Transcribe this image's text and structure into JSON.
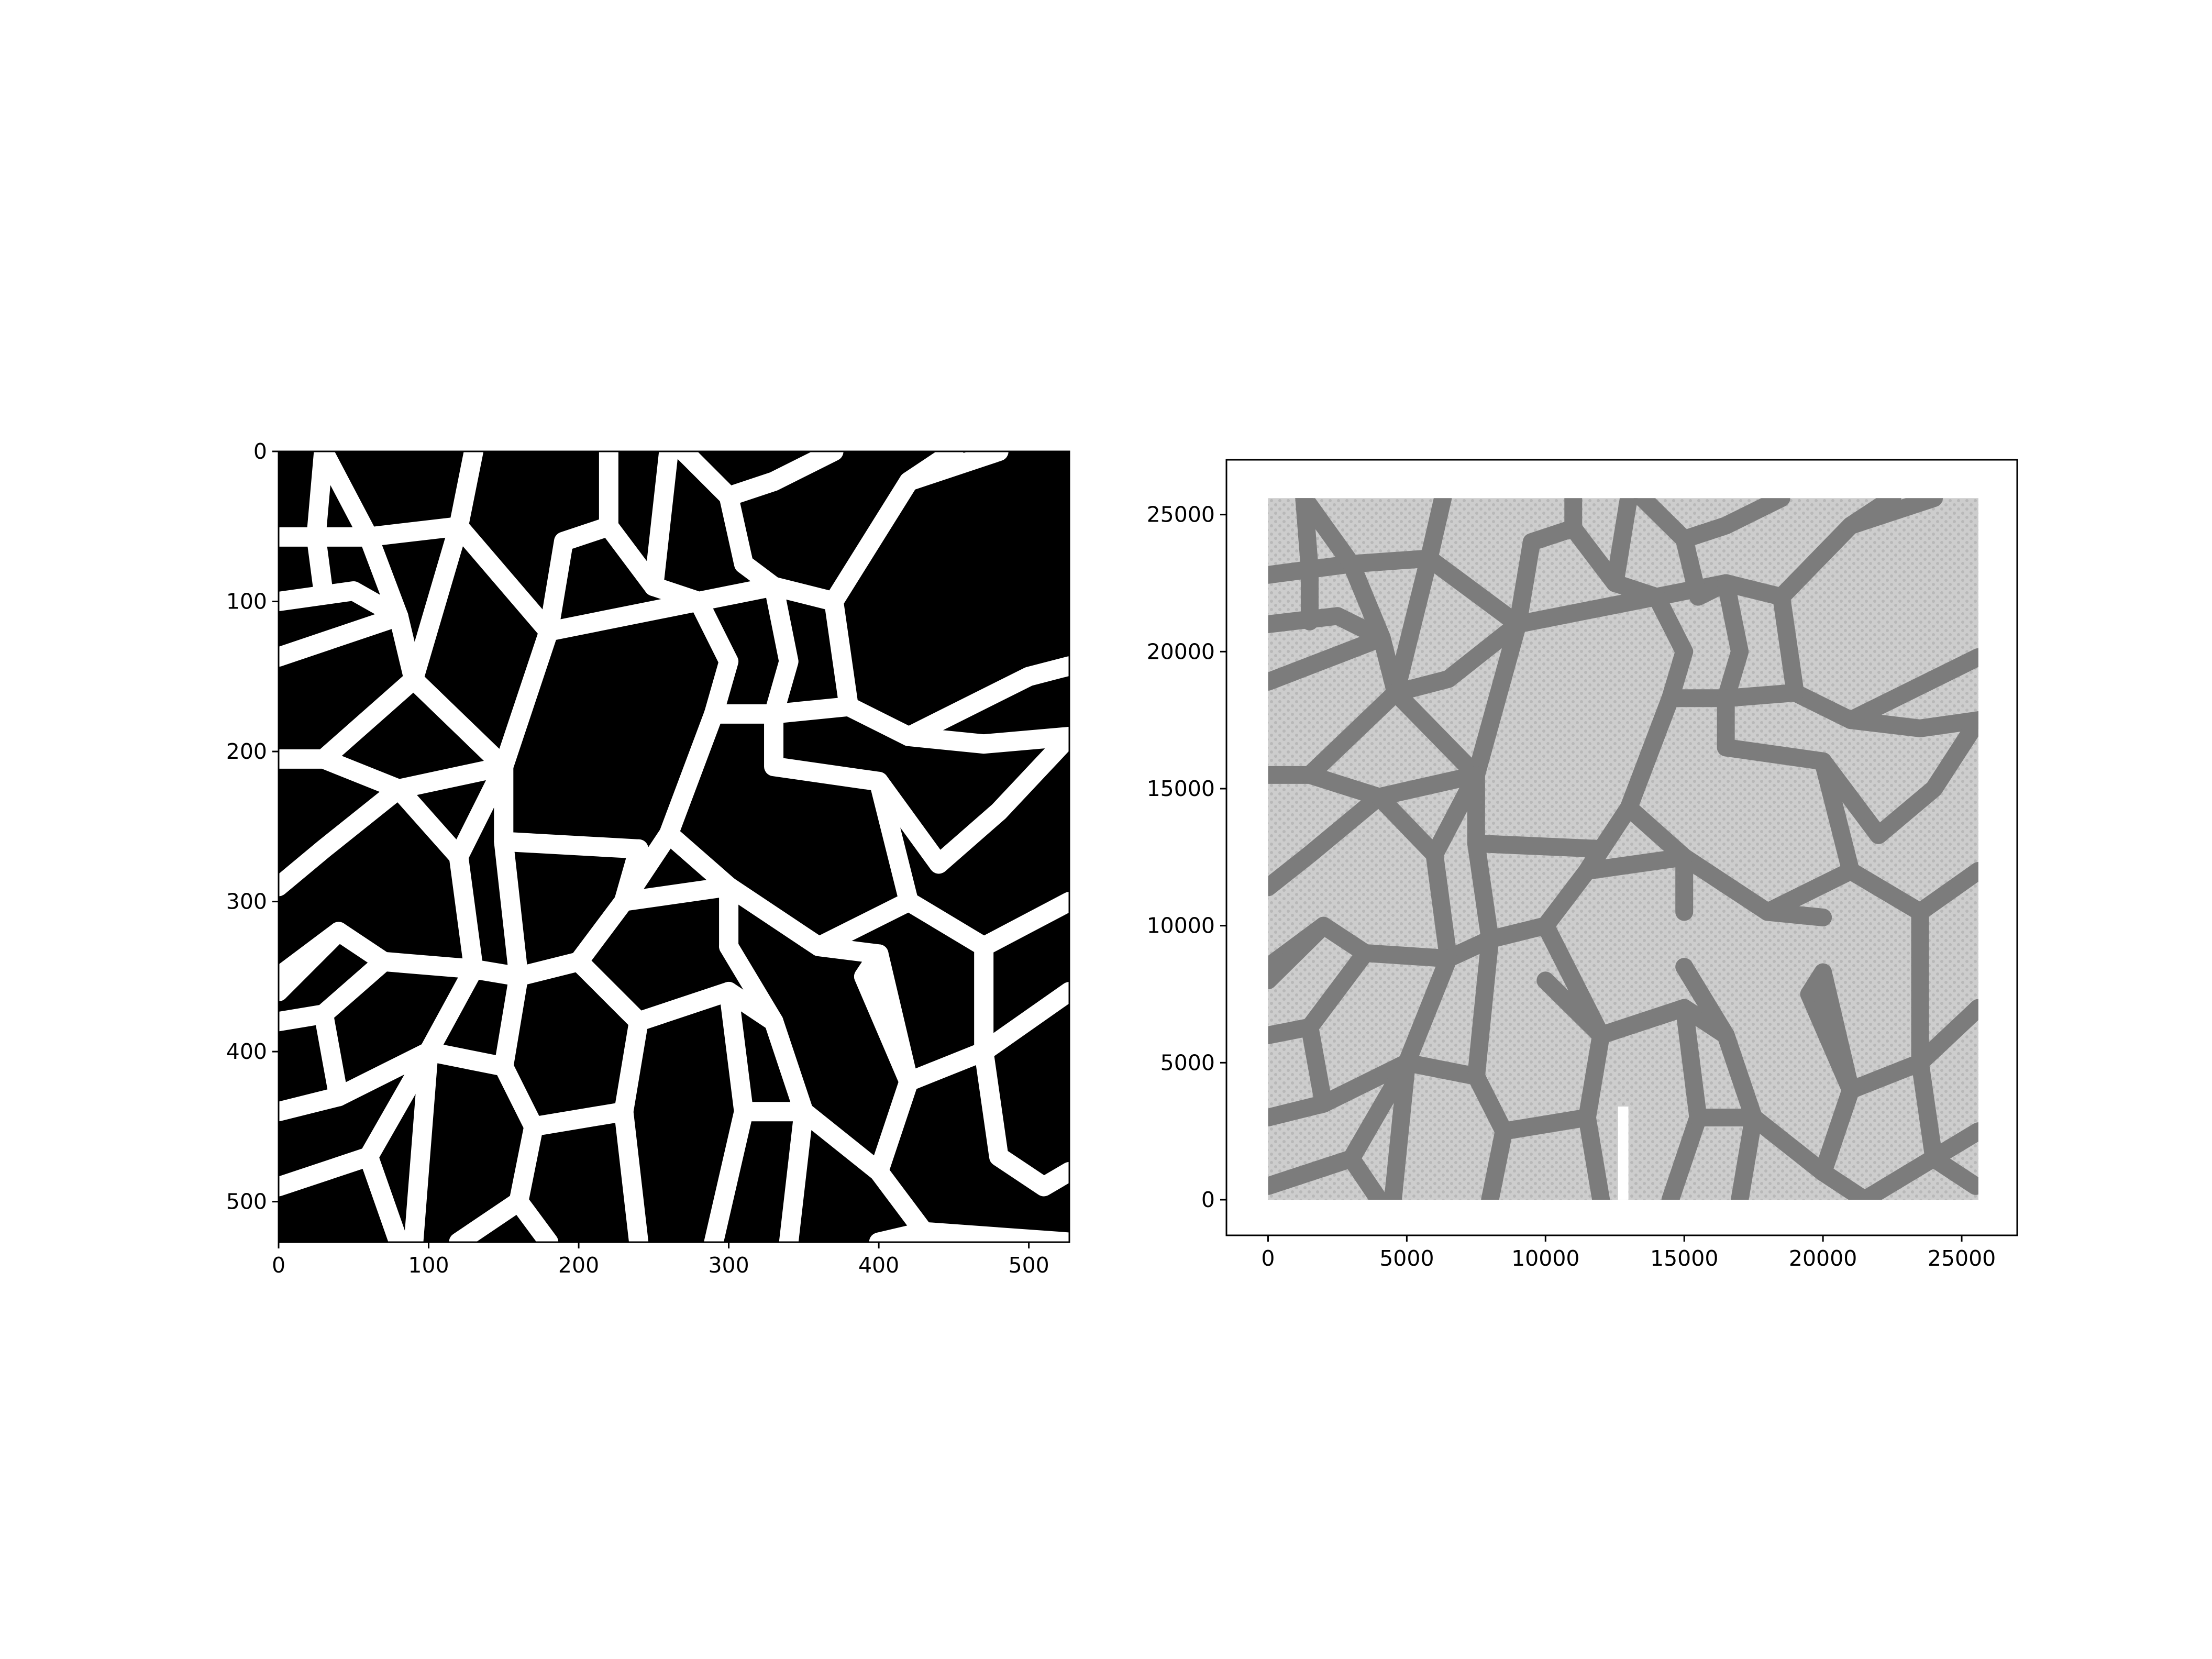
{
  "chart_data": [
    {
      "type": "heatmap",
      "title": "",
      "xlabel": "",
      "ylabel": "",
      "description_values": "binary voronoi-cell image; white cell walls on black cells",
      "xlim": [
        0,
        527
      ],
      "ylim": [
        527,
        0
      ],
      "x_ticks": [
        "0",
        "100",
        "200",
        "300",
        "400",
        "500"
      ],
      "y_ticks": [
        "0",
        "100",
        "200",
        "300",
        "400",
        "500"
      ],
      "colors": {
        "background": "#000000",
        "walls": "#ffffff"
      }
    },
    {
      "type": "scatter",
      "title": "",
      "xlabel": "",
      "ylabel": "",
      "xlim": [
        -1500,
        27000
      ],
      "ylim": [
        -1300,
        27000
      ],
      "x_ticks": [
        "0",
        "5000",
        "10000",
        "15000",
        "20000",
        "25000"
      ],
      "y_ticks": [
        "0",
        "5000",
        "10000",
        "15000",
        "20000",
        "25000"
      ],
      "point_region": {
        "x": [
          0,
          25600
        ],
        "y": [
          0,
          25600
        ]
      },
      "notch": {
        "x": 12800,
        "y": [
          0,
          3400
        ]
      },
      "colors": {
        "cell_points": "#c4c4c4",
        "wall_points": "#7c7c7c",
        "notch": "#ffffff"
      }
    }
  ]
}
